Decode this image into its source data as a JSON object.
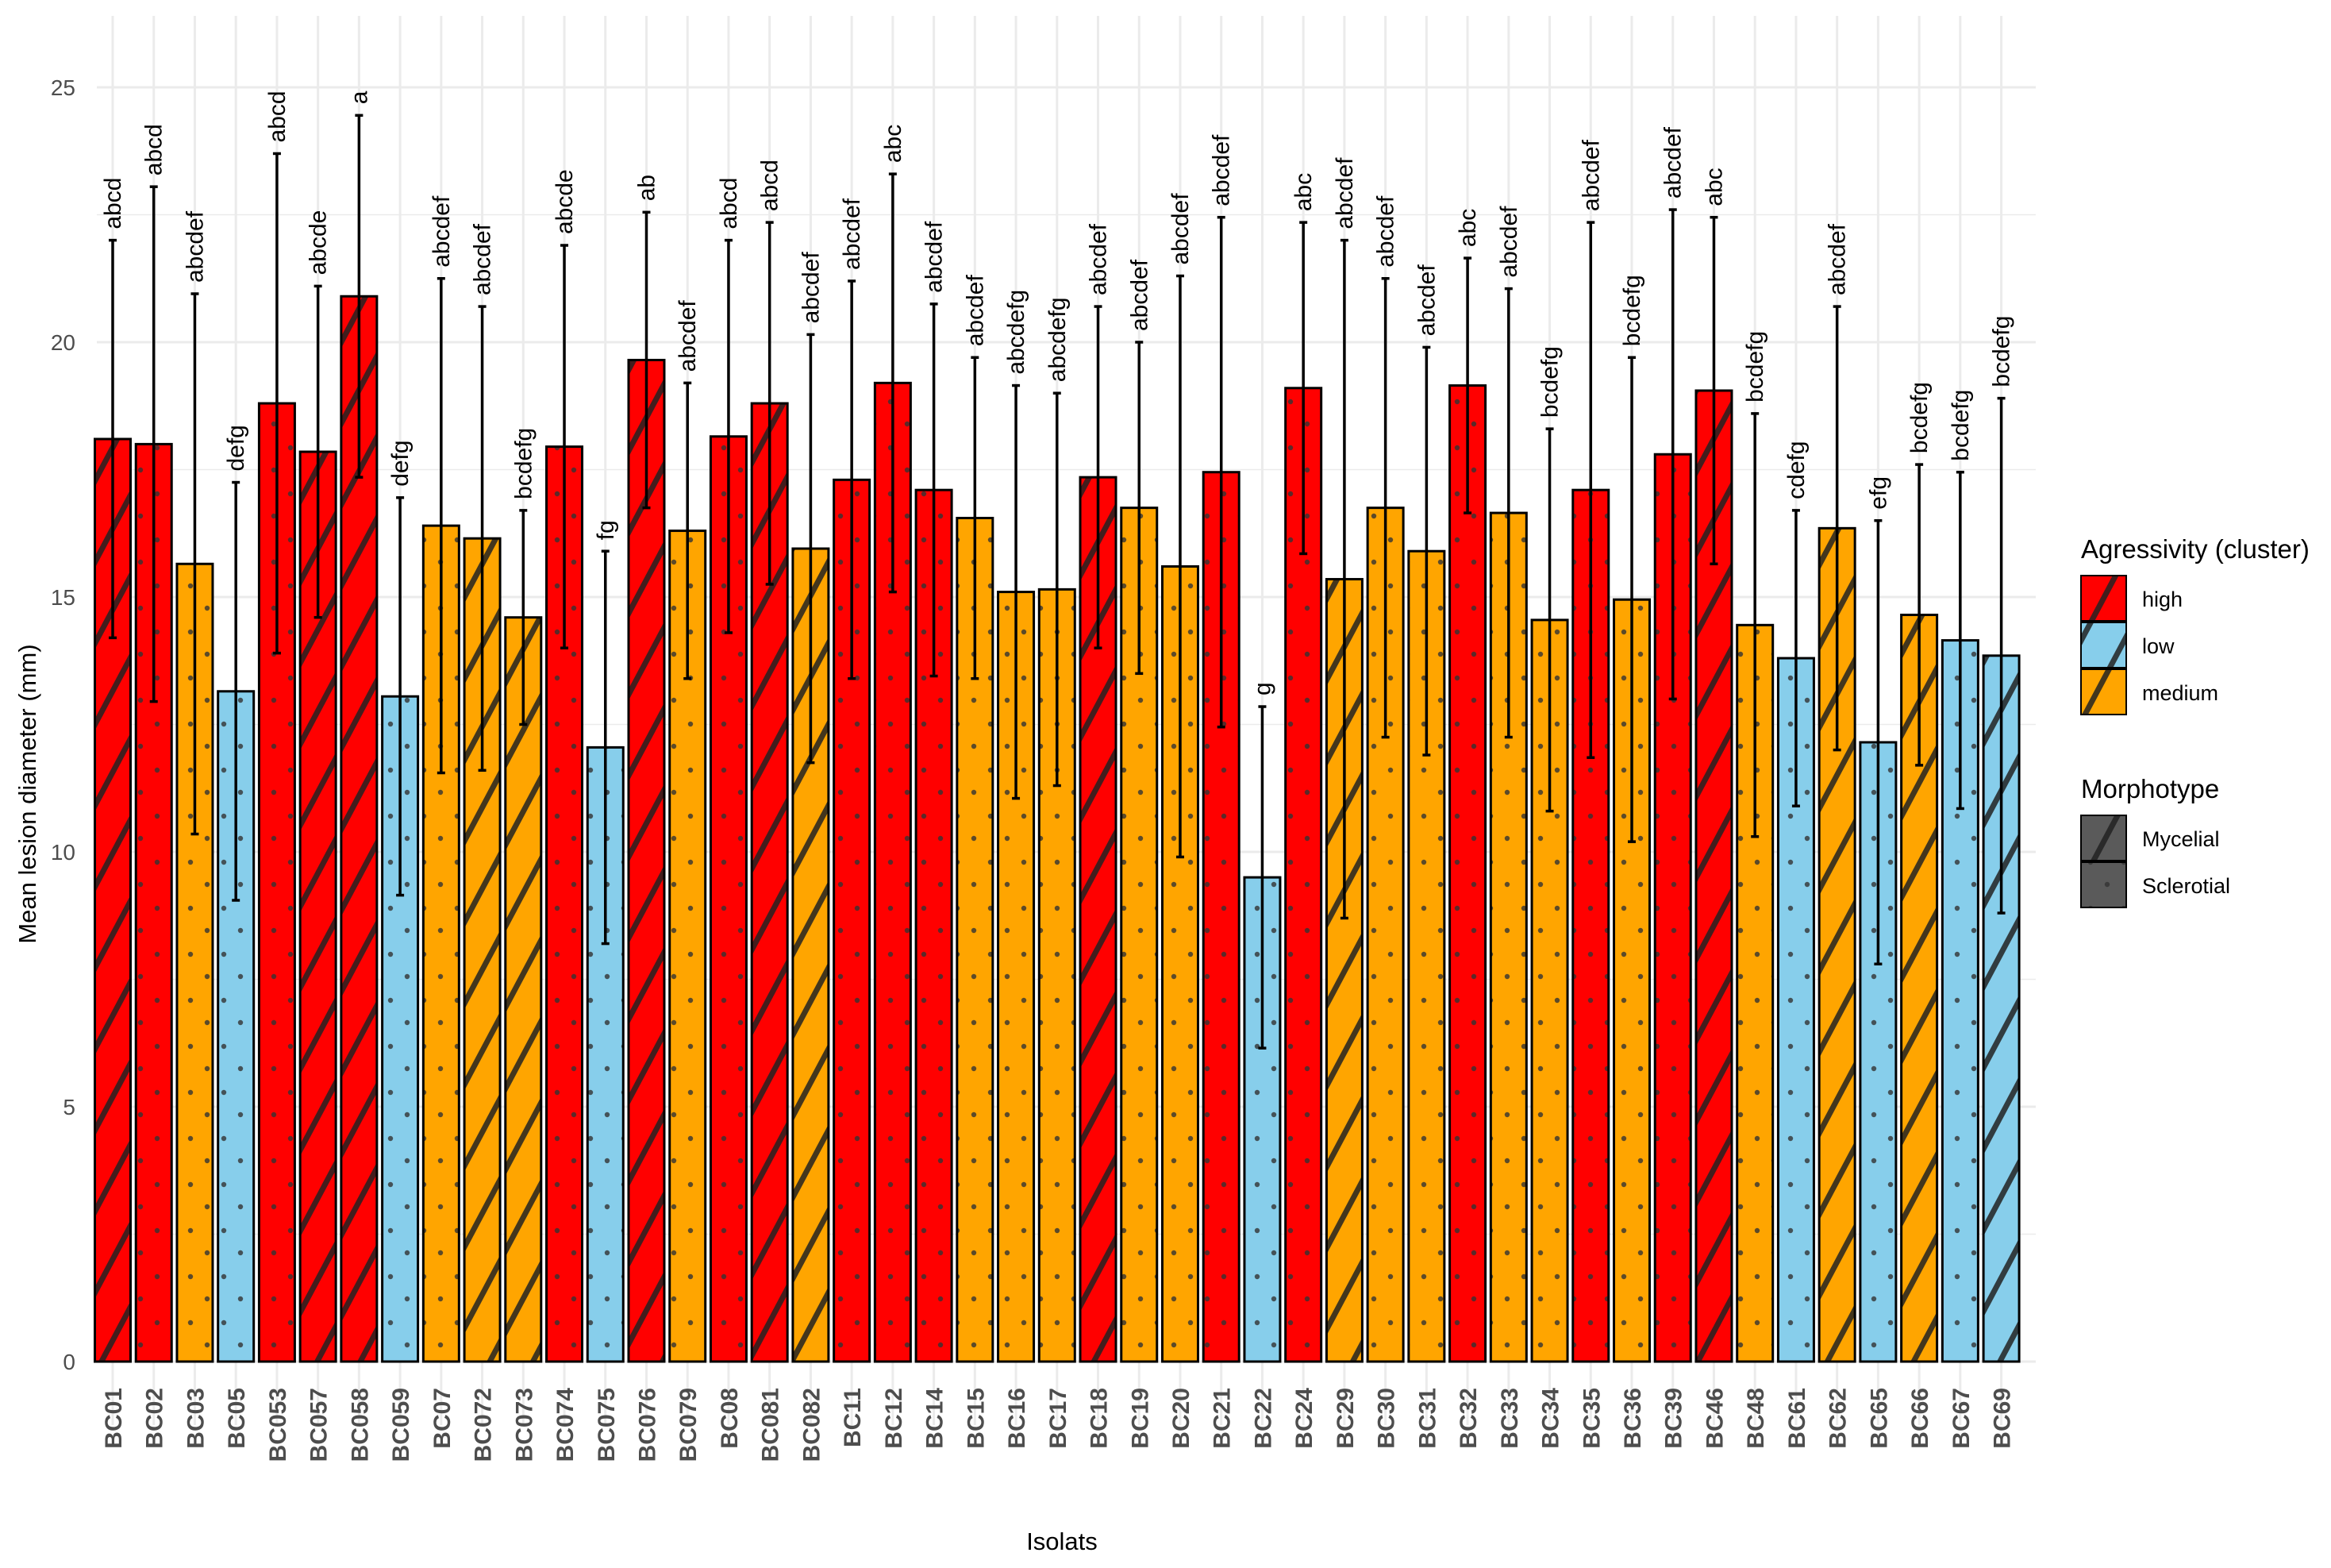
{
  "chart_data": {
    "type": "bar",
    "xlabel": "Isolats",
    "ylabel": "Mean lesion diameter (mm)",
    "ylim": [
      0,
      26
    ],
    "yticks": [
      0,
      5,
      10,
      15,
      20,
      25
    ],
    "grid": true,
    "colors": {
      "high": "#ff0000",
      "low": "#87ceeb",
      "medium": "#ffa500"
    },
    "legend": {
      "position": "right",
      "fill_title": "Agressivity (cluster)",
      "fill_items": [
        "high",
        "low",
        "medium"
      ],
      "pattern_title": "Morphotype",
      "pattern_items": [
        "Mycelial",
        "Sclerotial"
      ]
    },
    "bars": [
      {
        "isolate": "BC01",
        "mean": 18.1,
        "err": 3.9,
        "letters": "abcd",
        "agressivity": "high",
        "morphotype": "Mycelial"
      },
      {
        "isolate": "BC02",
        "mean": 18.0,
        "err": 5.05,
        "letters": "abcd",
        "agressivity": "high",
        "morphotype": "Sclerotial"
      },
      {
        "isolate": "BC03",
        "mean": 15.65,
        "err": 5.3,
        "letters": "abcdef",
        "agressivity": "medium",
        "morphotype": "Sclerotial"
      },
      {
        "isolate": "BC05",
        "mean": 13.15,
        "err": 4.1,
        "letters": "defg",
        "agressivity": "low",
        "morphotype": "Sclerotial"
      },
      {
        "isolate": "BC053",
        "mean": 18.8,
        "err": 4.9,
        "letters": "abcd",
        "agressivity": "high",
        "morphotype": "Sclerotial"
      },
      {
        "isolate": "BC057",
        "mean": 17.85,
        "err": 3.25,
        "letters": "abcde",
        "agressivity": "high",
        "morphotype": "Mycelial"
      },
      {
        "isolate": "BC058",
        "mean": 20.9,
        "err": 3.55,
        "letters": "a",
        "agressivity": "high",
        "morphotype": "Mycelial"
      },
      {
        "isolate": "BC059",
        "mean": 13.05,
        "err": 3.9,
        "letters": "defg",
        "agressivity": "low",
        "morphotype": "Sclerotial"
      },
      {
        "isolate": "BC07",
        "mean": 16.4,
        "err": 4.85,
        "letters": "abcdef",
        "agressivity": "medium",
        "morphotype": "Sclerotial"
      },
      {
        "isolate": "BC072",
        "mean": 16.15,
        "err": 4.55,
        "letters": "abcdef",
        "agressivity": "medium",
        "morphotype": "Mycelial"
      },
      {
        "isolate": "BC073",
        "mean": 14.6,
        "err": 2.1,
        "letters": "bcdefg",
        "agressivity": "medium",
        "morphotype": "Mycelial"
      },
      {
        "isolate": "BC074",
        "mean": 17.95,
        "err": 3.95,
        "letters": "abcde",
        "agressivity": "high",
        "morphotype": "Sclerotial"
      },
      {
        "isolate": "BC075",
        "mean": 12.05,
        "err": 3.85,
        "letters": "fg",
        "agressivity": "low",
        "morphotype": "Sclerotial"
      },
      {
        "isolate": "BC076",
        "mean": 19.65,
        "err": 2.9,
        "letters": "ab",
        "agressivity": "high",
        "morphotype": "Mycelial"
      },
      {
        "isolate": "BC079",
        "mean": 16.3,
        "err": 2.9,
        "letters": "abcdef",
        "agressivity": "medium",
        "morphotype": "Sclerotial"
      },
      {
        "isolate": "BC08",
        "mean": 18.15,
        "err": 3.85,
        "letters": "abcd",
        "agressivity": "high",
        "morphotype": "Sclerotial"
      },
      {
        "isolate": "BC081",
        "mean": 18.8,
        "err": 3.55,
        "letters": "abcd",
        "agressivity": "high",
        "morphotype": "Mycelial"
      },
      {
        "isolate": "BC082",
        "mean": 15.95,
        "err": 4.2,
        "letters": "abcdef",
        "agressivity": "medium",
        "morphotype": "Mycelial"
      },
      {
        "isolate": "BC11",
        "mean": 17.3,
        "err": 3.9,
        "letters": "abcdef",
        "agressivity": "high",
        "morphotype": "Sclerotial"
      },
      {
        "isolate": "BC12",
        "mean": 19.2,
        "err": 4.1,
        "letters": "abc",
        "agressivity": "high",
        "morphotype": "Sclerotial"
      },
      {
        "isolate": "BC14",
        "mean": 17.1,
        "err": 3.65,
        "letters": "abcdef",
        "agressivity": "high",
        "morphotype": "Sclerotial"
      },
      {
        "isolate": "BC15",
        "mean": 16.55,
        "err": 3.15,
        "letters": "abcdef",
        "agressivity": "medium",
        "morphotype": "Sclerotial"
      },
      {
        "isolate": "BC16",
        "mean": 15.1,
        "err": 4.05,
        "letters": "abcdefg",
        "agressivity": "medium",
        "morphotype": "Sclerotial"
      },
      {
        "isolate": "BC17",
        "mean": 15.15,
        "err": 3.85,
        "letters": "abcdefg",
        "agressivity": "medium",
        "morphotype": "Sclerotial"
      },
      {
        "isolate": "BC18",
        "mean": 17.35,
        "err": 3.35,
        "letters": "abcdef",
        "agressivity": "high",
        "morphotype": "Mycelial"
      },
      {
        "isolate": "BC19",
        "mean": 16.75,
        "err": 3.25,
        "letters": "abcdef",
        "agressivity": "medium",
        "morphotype": "Sclerotial"
      },
      {
        "isolate": "BC20",
        "mean": 15.6,
        "err": 5.7,
        "letters": "abcdef",
        "agressivity": "medium",
        "morphotype": "Sclerotial"
      },
      {
        "isolate": "BC21",
        "mean": 17.45,
        "err": 5.0,
        "letters": "abcdef",
        "agressivity": "high",
        "morphotype": "Sclerotial"
      },
      {
        "isolate": "BC22",
        "mean": 9.5,
        "err": 3.35,
        "letters": "g",
        "agressivity": "low",
        "morphotype": "Sclerotial"
      },
      {
        "isolate": "BC24",
        "mean": 19.1,
        "err": 3.25,
        "letters": "abc",
        "agressivity": "high",
        "morphotype": "Sclerotial"
      },
      {
        "isolate": "BC29",
        "mean": 15.35,
        "err": 6.65,
        "letters": "abcdef",
        "agressivity": "medium",
        "morphotype": "Mycelial"
      },
      {
        "isolate": "BC30",
        "mean": 16.75,
        "err": 4.5,
        "letters": "abcdef",
        "agressivity": "medium",
        "morphotype": "Sclerotial"
      },
      {
        "isolate": "BC31",
        "mean": 15.9,
        "err": 4.0,
        "letters": "abcdef",
        "agressivity": "medium",
        "morphotype": "Sclerotial"
      },
      {
        "isolate": "BC32",
        "mean": 19.15,
        "err": 2.5,
        "letters": "abc",
        "agressivity": "high",
        "morphotype": "Sclerotial"
      },
      {
        "isolate": "BC33",
        "mean": 16.65,
        "err": 4.4,
        "letters": "abcdef",
        "agressivity": "medium",
        "morphotype": "Sclerotial"
      },
      {
        "isolate": "BC34",
        "mean": 14.55,
        "err": 3.75,
        "letters": "bcdefg",
        "agressivity": "medium",
        "morphotype": "Sclerotial"
      },
      {
        "isolate": "BC35",
        "mean": 17.1,
        "err": 5.25,
        "letters": "abcdef",
        "agressivity": "high",
        "morphotype": "Sclerotial"
      },
      {
        "isolate": "BC36",
        "mean": 14.95,
        "err": 4.75,
        "letters": "bcdefg",
        "agressivity": "medium",
        "morphotype": "Sclerotial"
      },
      {
        "isolate": "BC39",
        "mean": 17.8,
        "err": 4.8,
        "letters": "abcdef",
        "agressivity": "high",
        "morphotype": "Sclerotial"
      },
      {
        "isolate": "BC46",
        "mean": 19.05,
        "err": 3.4,
        "letters": "abc",
        "agressivity": "high",
        "morphotype": "Mycelial"
      },
      {
        "isolate": "BC48",
        "mean": 14.45,
        "err": 4.15,
        "letters": "bcdefg",
        "agressivity": "medium",
        "morphotype": "Sclerotial"
      },
      {
        "isolate": "BC61",
        "mean": 13.8,
        "err": 2.9,
        "letters": "cdefg",
        "agressivity": "low",
        "morphotype": "Sclerotial"
      },
      {
        "isolate": "BC62",
        "mean": 16.35,
        "err": 4.35,
        "letters": "abcdef",
        "agressivity": "medium",
        "morphotype": "Mycelial"
      },
      {
        "isolate": "BC65",
        "mean": 12.15,
        "err": 4.35,
        "letters": "efg",
        "agressivity": "low",
        "morphotype": "Sclerotial"
      },
      {
        "isolate": "BC66",
        "mean": 14.65,
        "err": 2.95,
        "letters": "bcdefg",
        "agressivity": "medium",
        "morphotype": "Mycelial"
      },
      {
        "isolate": "BC67",
        "mean": 14.15,
        "err": 3.3,
        "letters": "bcdefg",
        "agressivity": "low",
        "morphotype": "Sclerotial"
      },
      {
        "isolate": "BC69",
        "mean": 13.85,
        "err": 5.05,
        "letters": "bcdefg",
        "agressivity": "low",
        "morphotype": "Mycelial"
      }
    ]
  }
}
